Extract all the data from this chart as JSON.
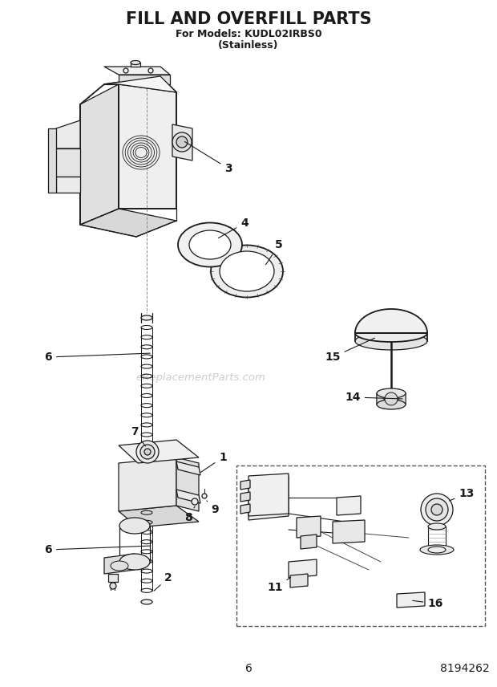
{
  "title": "FILL AND OVERFILL PARTS",
  "subtitle1": "For Models: KUDL02IRBS0",
  "subtitle2": "(Stainless)",
  "page_number": "6",
  "part_number": "8194262",
  "bg_color": "#ffffff",
  "text_color": "#1a1a1a",
  "watermark": "eReplacementParts.com",
  "lc": "#1a1a1a",
  "lw": 0.9,
  "lw2": 1.3,
  "title_fontsize": 15,
  "subtitle_fontsize": 9,
  "label_fontsize": 10
}
